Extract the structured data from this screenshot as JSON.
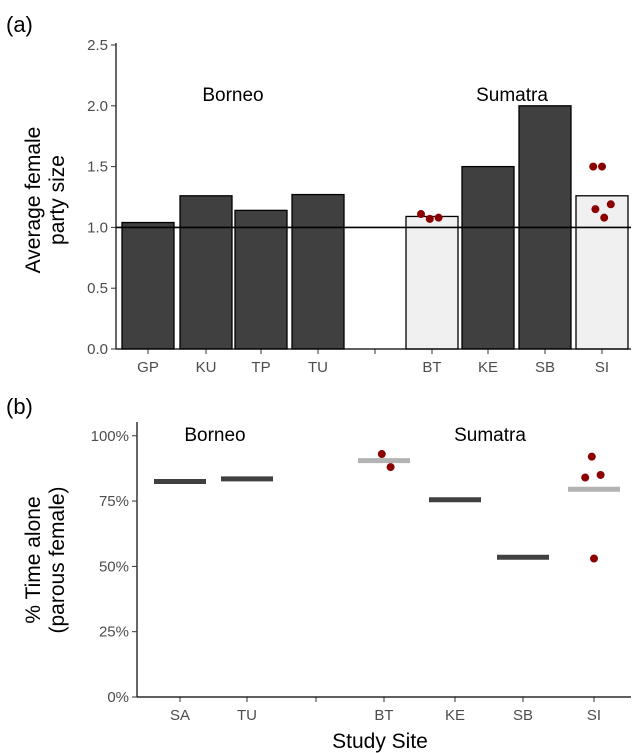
{
  "chart_data": [
    {
      "type": "bar",
      "panel_label": "(a)",
      "ylabel_lines": [
        "Average female",
        "party size"
      ],
      "ylim": [
        0,
        2.5
      ],
      "yticks": [
        "0.0",
        "0.5",
        "1.0",
        "1.5",
        "2.0",
        "2.5"
      ],
      "reference_line": 1.0,
      "grid": false,
      "groups": [
        {
          "label": "Borneo",
          "categories": [
            "GP",
            "KU",
            "TP",
            "TU"
          ]
        },
        {
          "label": "Sumatra",
          "categories": [
            "BT",
            "KE",
            "SB",
            "SI"
          ]
        }
      ],
      "categories": [
        "GP",
        "KU",
        "TP",
        "TU",
        "BT",
        "KE",
        "SB",
        "SI"
      ],
      "values": [
        1.04,
        1.26,
        1.14,
        1.27,
        1.09,
        1.5,
        2.0,
        1.26
      ],
      "bar_colors": [
        "#404040",
        "#404040",
        "#404040",
        "#404040",
        "#f0f0f0",
        "#404040",
        "#404040",
        "#f0f0f0"
      ],
      "points": [
        {
          "category": "BT",
          "values": [
            1.11,
            1.07,
            1.08
          ]
        },
        {
          "category": "SI",
          "values": [
            1.5,
            1.5,
            1.19,
            1.15,
            1.08
          ]
        }
      ],
      "point_color": "#8b0000"
    },
    {
      "type": "scatter",
      "panel_label": "(b)",
      "ylabel_lines": [
        "% Time alone",
        "(parous female)"
      ],
      "xlabel": "Study Site",
      "ylim": [
        0,
        1
      ],
      "yticks": [
        "0%",
        "25%",
        "50%",
        "75%",
        "100%"
      ],
      "grid": false,
      "groups": [
        {
          "label": "Borneo",
          "categories": [
            "SA",
            "TU"
          ]
        },
        {
          "label": "Sumatra",
          "categories": [
            "BT",
            "KE",
            "SB",
            "SI"
          ]
        }
      ],
      "categories": [
        "SA",
        "TU",
        "BT",
        "KE",
        "SB",
        "SI"
      ],
      "values": [
        0.825,
        0.835,
        0.905,
        0.755,
        0.535,
        0.795
      ],
      "value_colors": [
        "#404040",
        "#404040",
        "#b3b3b3",
        "#404040",
        "#404040",
        "#b3b3b3"
      ],
      "points": [
        {
          "category": "BT",
          "values": [
            0.93,
            0.88
          ]
        },
        {
          "category": "SI",
          "values": [
            0.92,
            0.85,
            0.84,
            0.53
          ]
        }
      ],
      "point_color": "#8b0000"
    }
  ]
}
